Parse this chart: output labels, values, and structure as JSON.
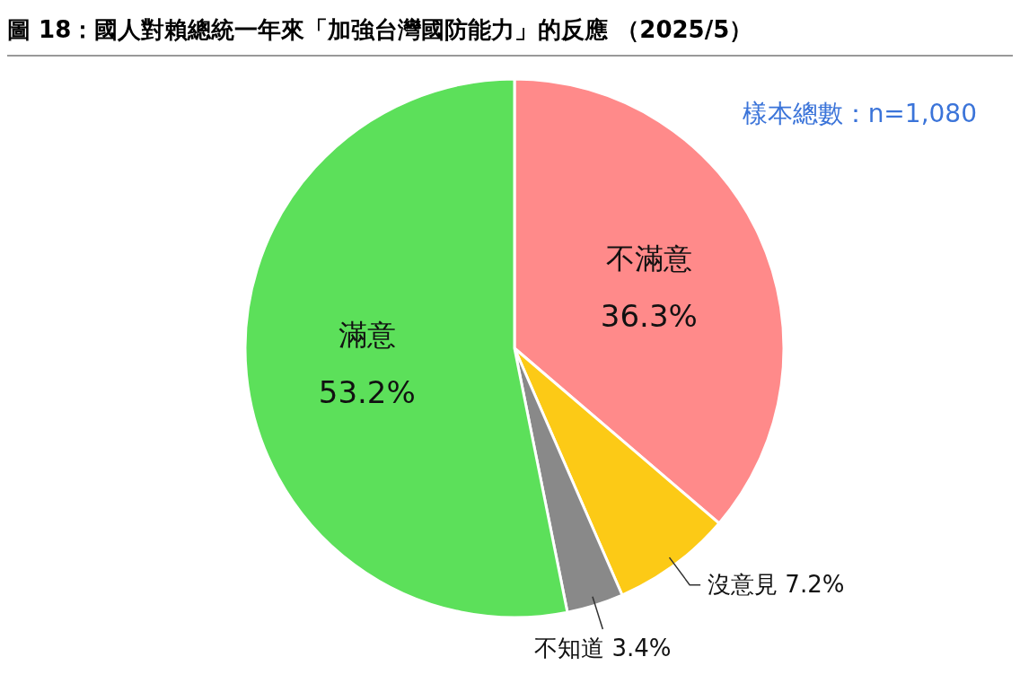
{
  "chart_data": {
    "type": "pie",
    "title": "圖 18：國人對賴總統一年來「加強台灣國防能力」的反應 （2025/5）",
    "annotations": [
      "樣本總數：n=1,080"
    ],
    "categories": [
      "不滿意",
      "沒意見",
      "不知道",
      "滿意"
    ],
    "values": [
      36.3,
      7.2,
      3.4,
      53.2
    ],
    "value_labels": [
      "36.3%",
      "7.2%",
      "3.4%",
      "53.2%"
    ],
    "colors": [
      "#ff8a8a",
      "#fcca16",
      "#898989",
      "#5ce05a"
    ]
  }
}
